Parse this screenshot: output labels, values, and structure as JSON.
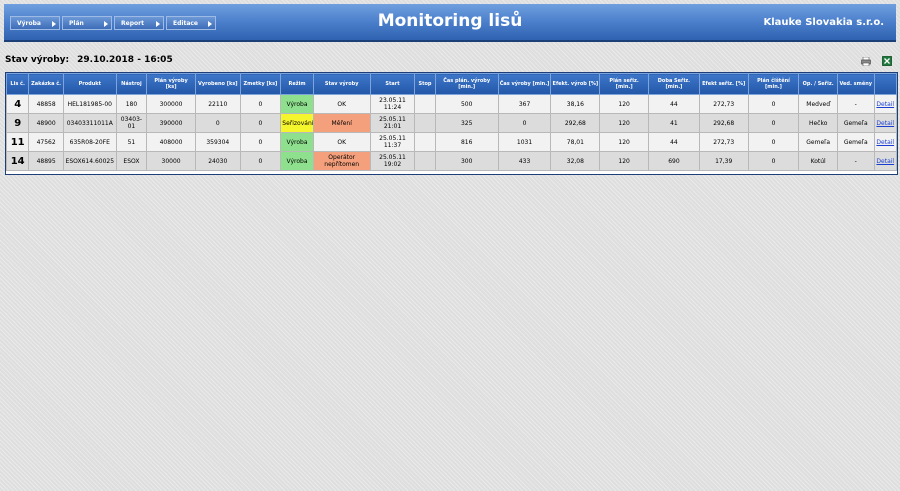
{
  "header": {
    "menu": [
      {
        "label": "Výroba"
      },
      {
        "label": "Plán"
      },
      {
        "label": "Report"
      },
      {
        "label": "Editace"
      }
    ],
    "title": "Monitoring lisů",
    "company": "Klauke Slovakia s.r.o."
  },
  "status": {
    "label": "Stav výroby:",
    "datetime": "29.10.2018 - 16:05"
  },
  "toolbar": {
    "print_icon": "printer-icon",
    "excel_icon": "excel-icon"
  },
  "table": {
    "columns": [
      "Lis č.",
      "Zakázka č.",
      "Produkt",
      "Nástroj",
      "Plán výroby [ks]",
      "Vyrobeno [ks]",
      "Zmetky [ks]",
      "Režim",
      "Stav výroby",
      "Start",
      "Stop",
      "Čas plán. výroby [min.]",
      "Čas výroby [min.]",
      "Efekt. výrob [%]",
      "Plán seřiz. [min.]",
      "Doba Seřiz. [min.]",
      "Efekt seřiz. [%]",
      "Plán čištění [min.]",
      "Op. / Seřiz.",
      "Ved. směny",
      ""
    ],
    "rows": [
      {
        "cells": [
          "4",
          "48858",
          "HEL181985-00",
          "180",
          "300000",
          "22110",
          "0",
          "Výroba",
          "OK",
          "23.05.11 11:24",
          "",
          "500",
          "367",
          "38,16",
          "120",
          "44",
          "272,73",
          "0",
          "Medveď",
          "-",
          "Detail"
        ],
        "rezim_color": "green",
        "stav_color": ""
      },
      {
        "cells": [
          "9",
          "48900",
          "03403311011A",
          "03403-01",
          "390000",
          "0",
          "0",
          "Seřizování",
          "Měření",
          "25.05.11 21:01",
          "",
          "325",
          "0",
          "292,68",
          "120",
          "41",
          "292,68",
          "0",
          "Hečko",
          "Gemeľa",
          "Detail"
        ],
        "rezim_color": "yellow",
        "stav_color": "salmon"
      },
      {
        "cells": [
          "11",
          "47562",
          "635R08-20FE",
          "51",
          "408000",
          "359304",
          "0",
          "Výroba",
          "OK",
          "25.05.11 11:37",
          "",
          "816",
          "1031",
          "78,01",
          "120",
          "44",
          "272,73",
          "0",
          "Gemeľa",
          "Gemeľa",
          "Detail"
        ],
        "rezim_color": "green",
        "stav_color": ""
      },
      {
        "cells": [
          "14",
          "48895",
          "ESOX614.60025",
          "ESOX",
          "30000",
          "24030",
          "0",
          "Výroba",
          "Operátor nepřítomen",
          "25.05.11 19:02",
          "",
          "300",
          "433",
          "32,08",
          "120",
          "690",
          "17,39",
          "0",
          "Kotúl",
          "-",
          "Detail"
        ],
        "rezim_color": "green",
        "stav_color": "salmon"
      }
    ]
  }
}
